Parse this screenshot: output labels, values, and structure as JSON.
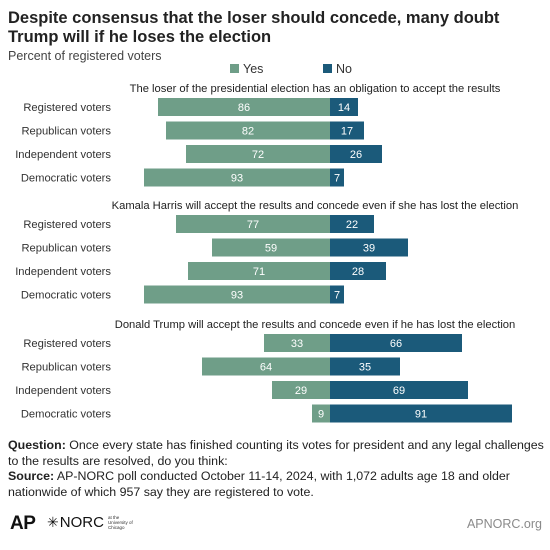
{
  "title": "Despite consensus that the loser should concede, many doubt Trump will if he loses the election",
  "subtitle": "Percent of registered voters",
  "legend": [
    {
      "label": "Yes",
      "color": "#6f9e88"
    },
    {
      "label": "No",
      "color": "#1b5a7a"
    }
  ],
  "chart_data": {
    "type": "bar",
    "orientation": "horizontal diverging",
    "categories": [
      "Registered voters",
      "Republican voters",
      "Independent voters",
      "Democratic voters"
    ],
    "panels": [
      {
        "title": "The loser of the presidential election has an obligation to accept the results",
        "series": [
          {
            "name": "Yes",
            "values": [
              86,
              82,
              72,
              93
            ]
          },
          {
            "name": "No",
            "values": [
              14,
              17,
              26,
              7
            ]
          }
        ]
      },
      {
        "title": "Kamala Harris will accept the results and concede even if she has lost the election",
        "series": [
          {
            "name": "Yes",
            "values": [
              77,
              59,
              71,
              93
            ]
          },
          {
            "name": "No",
            "values": [
              22,
              39,
              28,
              7
            ]
          }
        ]
      },
      {
        "title": "Donald Trump will accept the results and concede even if he has lost the election",
        "series": [
          {
            "name": "Yes",
            "values": [
              33,
              64,
              29,
              9
            ]
          },
          {
            "name": "No",
            "values": [
              66,
              35,
              69,
              91
            ]
          }
        ]
      }
    ]
  },
  "notes": {
    "question_label": "Question:",
    "question_text": "Once every state has finished counting its votes for president and any legal challenges to the results are resolved, do you think:",
    "source_label": "Source:",
    "source_text": "AP-NORC poll conducted October 11-14, 2024, with 1,072 adults age 18 and older nationwide of which 957 say they are registered to vote."
  },
  "footer": {
    "ap_logo": "AP",
    "norc_logo": "NORC",
    "norc_sub": "at the University of Chicago",
    "brand": "APNORC.org"
  },
  "colors": {
    "yes": "#6f9e88",
    "no": "#1b5a7a",
    "panel_title": "#222222",
    "label": "#333333"
  }
}
